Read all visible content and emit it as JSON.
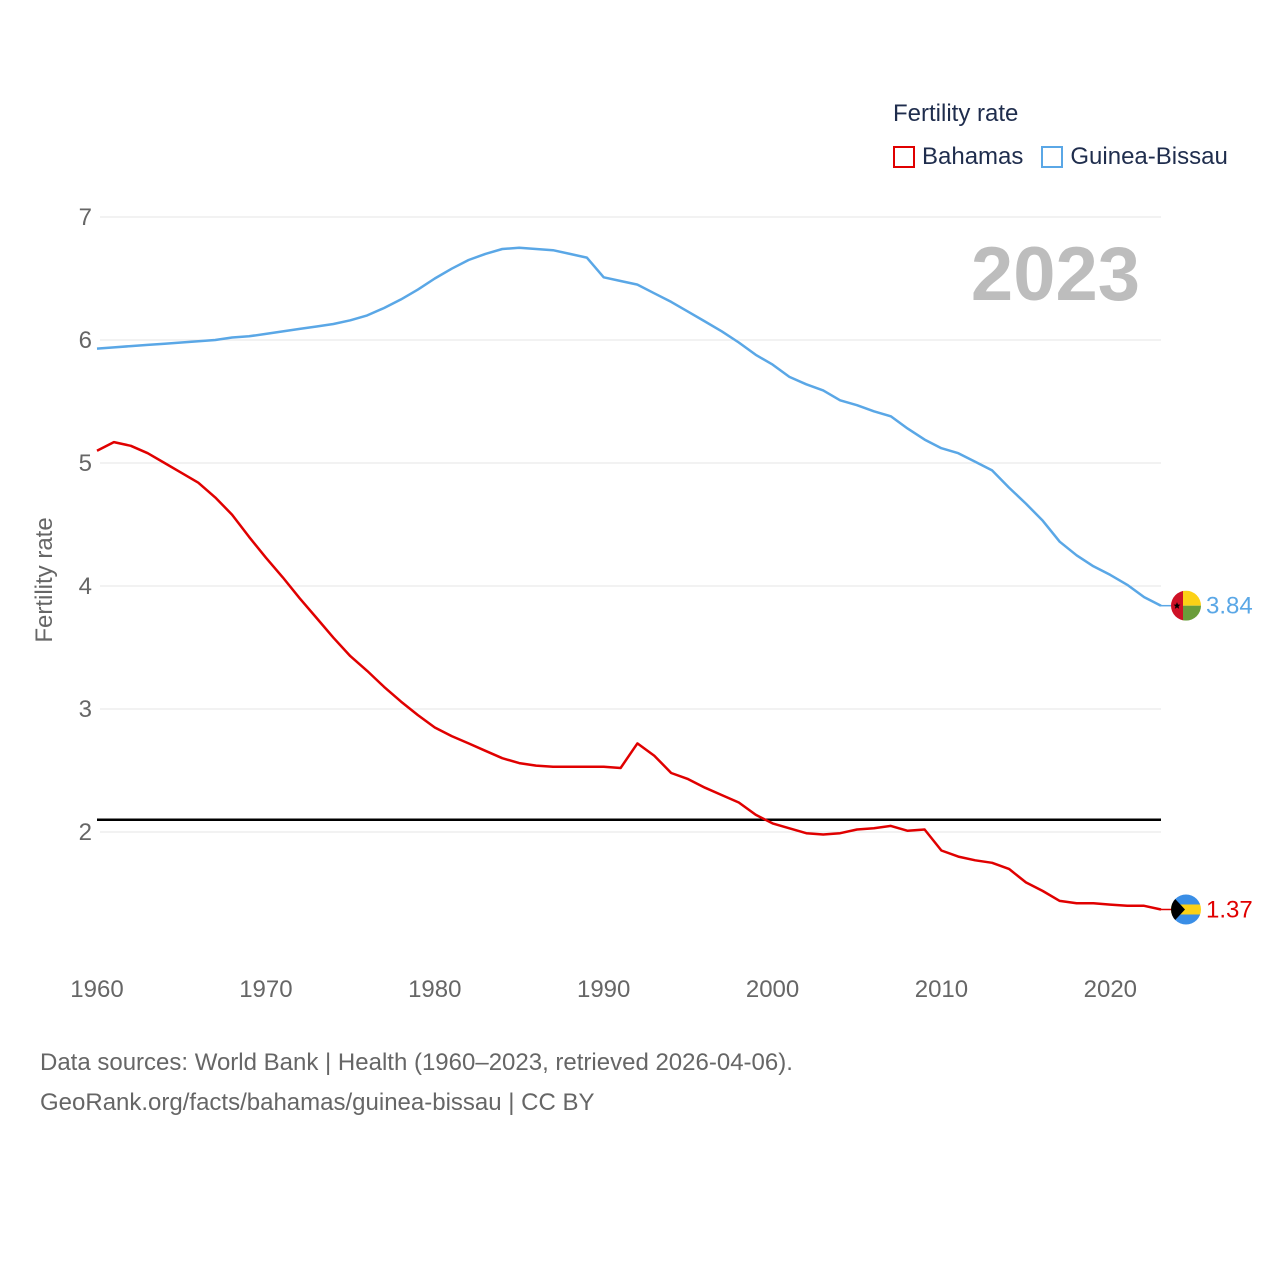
{
  "legend": {
    "title": "Fertility rate",
    "items": [
      "Bahamas",
      "Guinea-Bissau"
    ]
  },
  "year_watermark": "2023",
  "source": {
    "line1": "Data sources: World Bank | Health (1960–2023, retrieved 2026-04-06).",
    "line2": "GeoRank.org/facts/bahamas/guinea-bissau | CC BY"
  },
  "colors": {
    "bahamas": "#e00000",
    "guinea_bissau": "#5aa7e6",
    "reference": "#000000"
  },
  "chart_data": {
    "type": "line",
    "ylabel": "Fertility rate",
    "xlabel": "",
    "xlim": [
      1960,
      2023
    ],
    "ylim": [
      1,
      7
    ],
    "yticks": [
      2,
      3,
      4,
      5,
      6,
      7
    ],
    "xticks": [
      1960,
      1970,
      1980,
      1990,
      2000,
      2010,
      2020
    ],
    "reference_line": {
      "y": 2.1
    },
    "x": [
      1960,
      1961,
      1962,
      1963,
      1964,
      1965,
      1966,
      1967,
      1968,
      1969,
      1970,
      1971,
      1972,
      1973,
      1974,
      1975,
      1976,
      1977,
      1978,
      1979,
      1980,
      1981,
      1982,
      1983,
      1984,
      1985,
      1986,
      1987,
      1988,
      1989,
      1990,
      1991,
      1992,
      1993,
      1994,
      1995,
      1996,
      1997,
      1998,
      1999,
      2000,
      2001,
      2002,
      2003,
      2004,
      2005,
      2006,
      2007,
      2008,
      2009,
      2010,
      2011,
      2012,
      2013,
      2014,
      2015,
      2016,
      2017,
      2018,
      2019,
      2020,
      2021,
      2022,
      2023
    ],
    "series": [
      {
        "name": "Bahamas",
        "color": "#e00000",
        "end_label": "1.37",
        "flag": "bahamas-flag",
        "values": [
          5.1,
          5.17,
          5.14,
          5.08,
          5.0,
          4.92,
          4.84,
          4.72,
          4.58,
          4.4,
          4.23,
          4.07,
          3.9,
          3.74,
          3.58,
          3.43,
          3.31,
          3.18,
          3.06,
          2.95,
          2.85,
          2.78,
          2.72,
          2.66,
          2.6,
          2.56,
          2.54,
          2.53,
          2.53,
          2.53,
          2.53,
          2.52,
          2.72,
          2.62,
          2.48,
          2.43,
          2.36,
          2.3,
          2.24,
          2.14,
          2.07,
          2.03,
          1.99,
          1.98,
          1.99,
          2.02,
          2.03,
          2.05,
          2.01,
          2.02,
          1.85,
          1.8,
          1.77,
          1.75,
          1.7,
          1.59,
          1.52,
          1.44,
          1.42,
          1.42,
          1.41,
          1.4,
          1.4,
          1.37
        ]
      },
      {
        "name": "Guinea-Bissau",
        "color": "#5aa7e6",
        "end_label": "3.84",
        "flag": "guinea-bissau-flag",
        "values": [
          5.93,
          5.94,
          5.95,
          5.96,
          5.97,
          5.98,
          5.99,
          6.0,
          6.02,
          6.03,
          6.05,
          6.07,
          6.09,
          6.11,
          6.13,
          6.16,
          6.2,
          6.26,
          6.33,
          6.41,
          6.5,
          6.58,
          6.65,
          6.7,
          6.74,
          6.75,
          6.74,
          6.73,
          6.7,
          6.67,
          6.51,
          6.48,
          6.45,
          6.38,
          6.31,
          6.23,
          6.15,
          6.07,
          5.98,
          5.88,
          5.8,
          5.7,
          5.64,
          5.59,
          5.51,
          5.47,
          5.42,
          5.38,
          5.28,
          5.19,
          5.12,
          5.08,
          5.01,
          4.94,
          4.8,
          4.67,
          4.53,
          4.36,
          4.25,
          4.16,
          4.09,
          4.01,
          3.91,
          3.84
        ]
      }
    ]
  }
}
